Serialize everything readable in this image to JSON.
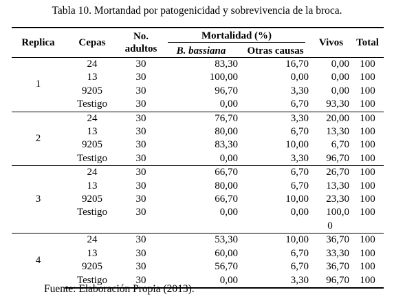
{
  "caption": "Tabla 10. Mortandad por patogenicidad y sobrevivencia de la broca.",
  "headers": {
    "replica": "Replica",
    "cepas": "Cepas",
    "no_adultos_1": "No.",
    "no_adultos_2": "adultos",
    "mortalidad": "Mortalidad (%)",
    "b_bassiana": "B. bassiana",
    "otras": "Otras causas",
    "vivos": "Vivos",
    "total": "Total"
  },
  "groups": [
    {
      "replica": "1",
      "rows": [
        {
          "cepa": "24",
          "adultos": "30",
          "bb": "83,30",
          "otras": "16,70",
          "vivos": "0,00",
          "total": "100"
        },
        {
          "cepa": "13",
          "adultos": "30",
          "bb": "100,00",
          "otras": "0,00",
          "vivos": "0,00",
          "total": "100"
        },
        {
          "cepa": "9205",
          "adultos": "30",
          "bb": "96,70",
          "otras": "3,30",
          "vivos": "0,00",
          "total": "100"
        },
        {
          "cepa": "Testigo",
          "adultos": "30",
          "bb": "0,00",
          "otras": "6,70",
          "vivos": "93,30",
          "total": "100"
        }
      ]
    },
    {
      "replica": "2",
      "rows": [
        {
          "cepa": "24",
          "adultos": "30",
          "bb": "76,70",
          "otras": "3,30",
          "vivos": "20,00",
          "total": "100"
        },
        {
          "cepa": "13",
          "adultos": "30",
          "bb": "80,00",
          "otras": "6,70",
          "vivos": "13,30",
          "total": "100"
        },
        {
          "cepa": "9205",
          "adultos": "30",
          "bb": "83,30",
          "otras": "10,00",
          "vivos": "6,70",
          "total": "100"
        },
        {
          "cepa": "Testigo",
          "adultos": "30",
          "bb": "0,00",
          "otras": "3,30",
          "vivos": "96,70",
          "total": "100"
        }
      ]
    },
    {
      "replica": "3",
      "rows": [
        {
          "cepa": "24",
          "adultos": "30",
          "bb": "66,70",
          "otras": "6,70",
          "vivos": "26,70",
          "total": "100"
        },
        {
          "cepa": "13",
          "adultos": "30",
          "bb": "80,00",
          "otras": "6,70",
          "vivos": "13,30",
          "total": "100"
        },
        {
          "cepa": "9205",
          "adultos": "30",
          "bb": "66,70",
          "otras": "10,00",
          "vivos": "23,30",
          "total": "100"
        },
        {
          "cepa": "Testigo",
          "adultos": "30",
          "bb": "0,00",
          "otras": "0,00",
          "vivos": "100,0",
          "vivos_wrap": "0",
          "total": "100"
        }
      ]
    },
    {
      "replica": "4",
      "rows": [
        {
          "cepa": "24",
          "adultos": "30",
          "bb": "53,30",
          "otras": "10,00",
          "vivos": "36,70",
          "total": "100"
        },
        {
          "cepa": "13",
          "adultos": "30",
          "bb": "60,00",
          "otras": "6,70",
          "vivos": "33,30",
          "total": "100"
        },
        {
          "cepa": "9205",
          "adultos": "30",
          "bb": "56,70",
          "otras": "6,70",
          "vivos": "36,70",
          "total": "100"
        },
        {
          "cepa": "Testigo",
          "adultos": "30",
          "bb": "0,00",
          "otras": "3,30",
          "vivos": "96,70",
          "total": "100"
        }
      ]
    }
  ],
  "footer": "Fuente: Elaboración Propia (2013)."
}
